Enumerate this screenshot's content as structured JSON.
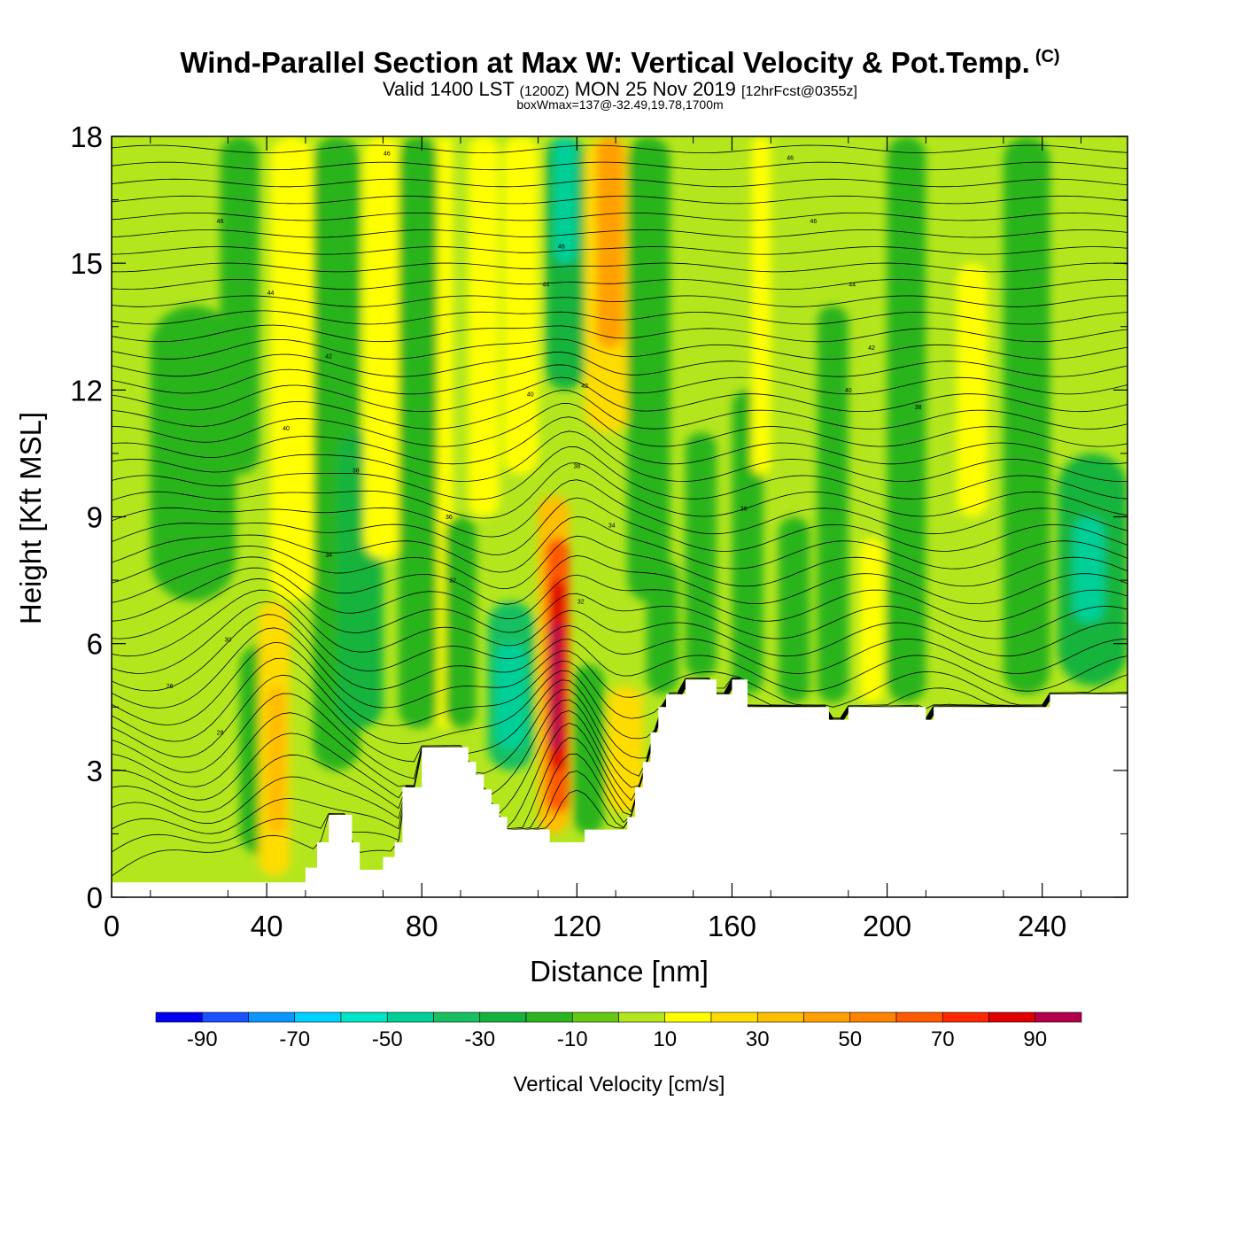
{
  "header": {
    "title": "Wind-Parallel Section at Max W: Vertical Velocity & Pot.Temp.",
    "copyright_mark": "(C)",
    "valid_prefix": "Valid 1400 LST",
    "valid_utc": "(1200Z)",
    "valid_date": "MON 25 Nov 2019",
    "forecast_info": "[12hrFcst@0355z]",
    "box_wmax": "boxWmax=137@-32.49,19.78,1700m"
  },
  "chart_data": {
    "type": "heatmap",
    "xlabel": "Distance [nm]",
    "ylabel": "Height [Kft MSL]",
    "xlim": [
      0,
      262
    ],
    "ylim": [
      0,
      18
    ],
    "x_ticks": [
      0,
      40,
      80,
      120,
      160,
      200,
      240
    ],
    "y_ticks": [
      0,
      3,
      6,
      9,
      12,
      15,
      18
    ],
    "colorbar": {
      "title": "Vertical Velocity [cm/s]",
      "boundaries": [
        -100,
        -90,
        -80,
        -70,
        -60,
        -50,
        -40,
        -30,
        -20,
        -10,
        0,
        10,
        20,
        30,
        40,
        50,
        60,
        70,
        80,
        90,
        100
      ],
      "colors": [
        "#0000f0",
        "#1a50ff",
        "#0a96ff",
        "#00d2ff",
        "#00e6c8",
        "#00d098",
        "#18c060",
        "#14b43c",
        "#2cb41e",
        "#64c814",
        "#b4e61e",
        "#ffff00",
        "#ffdc00",
        "#ffbe00",
        "#ffa000",
        "#ff8200",
        "#ff5a00",
        "#ff2800",
        "#e10000",
        "#b4004b"
      ],
      "labels": [
        "-90",
        "-70",
        "-50",
        "-30",
        "-10",
        "10",
        "30",
        "50",
        "70",
        "90"
      ]
    },
    "background_fill": "#b4e61e",
    "terrain": [
      [
        0,
        0.35
      ],
      [
        50,
        0.35
      ],
      [
        50,
        0.7
      ],
      [
        53,
        0.7
      ],
      [
        53,
        1.3
      ],
      [
        56,
        1.3
      ],
      [
        56,
        1.95
      ],
      [
        62,
        1.95
      ],
      [
        62,
        1.3
      ],
      [
        64,
        1.3
      ],
      [
        64,
        0.65
      ],
      [
        70,
        0.65
      ],
      [
        70,
        0.95
      ],
      [
        73,
        0.95
      ],
      [
        73,
        1.3
      ],
      [
        75,
        1.3
      ],
      [
        75,
        2.6
      ],
      [
        80,
        2.6
      ],
      [
        80,
        3.55
      ],
      [
        92,
        3.55
      ],
      [
        92,
        3.2
      ],
      [
        94,
        3.2
      ],
      [
        94,
        2.9
      ],
      [
        96,
        2.9
      ],
      [
        96,
        2.55
      ],
      [
        98,
        2.55
      ],
      [
        98,
        2.2
      ],
      [
        100,
        2.2
      ],
      [
        100,
        1.9
      ],
      [
        102,
        1.9
      ],
      [
        102,
        1.6
      ],
      [
        113,
        1.6
      ],
      [
        113,
        1.3
      ],
      [
        122,
        1.3
      ],
      [
        122,
        1.6
      ],
      [
        133,
        1.6
      ],
      [
        133,
        1.9
      ],
      [
        135,
        1.9
      ],
      [
        135,
        2.6
      ],
      [
        137,
        2.6
      ],
      [
        137,
        3.2
      ],
      [
        139,
        3.2
      ],
      [
        139,
        3.9
      ],
      [
        141,
        3.9
      ],
      [
        141,
        4.5
      ],
      [
        143,
        4.5
      ],
      [
        143,
        4.8
      ],
      [
        148,
        4.8
      ],
      [
        148,
        5.15
      ],
      [
        156,
        5.15
      ],
      [
        156,
        4.8
      ],
      [
        160,
        4.8
      ],
      [
        160,
        5.15
      ],
      [
        164,
        5.15
      ],
      [
        164,
        4.5
      ],
      [
        185,
        4.5
      ],
      [
        185,
        4.2
      ],
      [
        190,
        4.2
      ],
      [
        190,
        4.5
      ],
      [
        210,
        4.5
      ],
      [
        210,
        4.2
      ],
      [
        212,
        4.2
      ],
      [
        212,
        4.5
      ],
      [
        242,
        4.5
      ],
      [
        242,
        4.8
      ],
      [
        262,
        4.8
      ]
    ],
    "velocity_cells": [
      {
        "x": [
          10,
          32
        ],
        "y": [
          7,
          14
        ],
        "w": -15
      },
      {
        "x": [
          28,
          38
        ],
        "y": [
          10,
          18
        ],
        "w": -15
      },
      {
        "x": [
          33,
          45
        ],
        "y": [
          1,
          6
        ],
        "w": -20
      },
      {
        "x": [
          38,
          46
        ],
        "y": [
          0.5,
          7
        ],
        "w": 25
      },
      {
        "x": [
          40,
          45
        ],
        "y": [
          1.5,
          5
        ],
        "w": 35
      },
      {
        "x": [
          41,
          52
        ],
        "y": [
          7,
          18
        ],
        "w": 18
      },
      {
        "x": [
          52,
          64
        ],
        "y": [
          3,
          18
        ],
        "w": -15
      },
      {
        "x": [
          58,
          70
        ],
        "y": [
          4,
          11
        ],
        "w": -25
      },
      {
        "x": [
          65,
          75
        ],
        "y": [
          8,
          18
        ],
        "w": 12
      },
      {
        "x": [
          74,
          84
        ],
        "y": [
          4,
          18
        ],
        "w": -15
      },
      {
        "x": [
          84,
          88
        ],
        "y": [
          4,
          18
        ],
        "w": 12
      },
      {
        "x": [
          86,
          94
        ],
        "y": [
          4,
          9
        ],
        "w": -15
      },
      {
        "x": [
          92,
          100
        ],
        "y": [
          9,
          18
        ],
        "w": 15
      },
      {
        "x": [
          97,
          109
        ],
        "y": [
          3,
          7
        ],
        "w": -35
      },
      {
        "x": [
          99,
          107
        ],
        "y": [
          3.5,
          6
        ],
        "w": -45
      },
      {
        "x": [
          101,
          110
        ],
        "y": [
          10,
          18
        ],
        "w": 12
      },
      {
        "x": [
          110,
          118
        ],
        "y": [
          1.5,
          9.5
        ],
        "w": 30
      },
      {
        "x": [
          112,
          118
        ],
        "y": [
          2,
          8.5
        ],
        "w": 60
      },
      {
        "x": [
          113,
          117
        ],
        "y": [
          3,
          7.5
        ],
        "w": 80
      },
      {
        "x": [
          113,
          116
        ],
        "y": [
          3.5,
          6.5
        ],
        "w": 95
      },
      {
        "x": [
          112,
          122
        ],
        "y": [
          12,
          18
        ],
        "w": -30
      },
      {
        "x": [
          114,
          120
        ],
        "y": [
          15,
          18
        ],
        "w": -50
      },
      {
        "x": [
          119,
          127
        ],
        "y": [
          1.5,
          5.5
        ],
        "w": -20
      },
      {
        "x": [
          122,
          134
        ],
        "y": [
          11,
          18
        ],
        "w": 25
      },
      {
        "x": [
          125,
          132
        ],
        "y": [
          13,
          18
        ],
        "w": 40
      },
      {
        "x": [
          128,
          137
        ],
        "y": [
          2,
          5
        ],
        "w": 20
      },
      {
        "x": [
          133,
          144
        ],
        "y": [
          7,
          18
        ],
        "w": -15
      },
      {
        "x": [
          138,
          146
        ],
        "y": [
          4.8,
          8
        ],
        "w": -20
      },
      {
        "x": [
          148,
          156
        ],
        "y": [
          5.2,
          11
        ],
        "w": -15
      },
      {
        "x": [
          160,
          168
        ],
        "y": [
          4.8,
          12
        ],
        "w": -15
      },
      {
        "x": [
          165,
          170
        ],
        "y": [
          10,
          18
        ],
        "w": 15
      },
      {
        "x": [
          172,
          180
        ],
        "y": [
          4.6,
          9
        ],
        "w": -20
      },
      {
        "x": [
          182,
          190
        ],
        "y": [
          4.6,
          14
        ],
        "w": -15
      },
      {
        "x": [
          193,
          199
        ],
        "y": [
          4.6,
          8.5
        ],
        "w": 18
      },
      {
        "x": [
          200,
          210
        ],
        "y": [
          4.6,
          18
        ],
        "w": -15
      },
      {
        "x": [
          218,
          226
        ],
        "y": [
          9,
          15
        ],
        "w": 18
      },
      {
        "x": [
          230,
          242
        ],
        "y": [
          4.8,
          18
        ],
        "w": -15
      },
      {
        "x": [
          244,
          262
        ],
        "y": [
          5,
          10.5
        ],
        "w": -25
      },
      {
        "x": [
          248,
          256
        ],
        "y": [
          6.5,
          9
        ],
        "w": -45
      }
    ],
    "isentrope_labels": [
      {
        "x": 28,
        "y": 16,
        "text": "46"
      },
      {
        "x": 41,
        "y": 14.3,
        "text": "44"
      },
      {
        "x": 56,
        "y": 12.8,
        "text": "42"
      },
      {
        "x": 45,
        "y": 11.1,
        "text": "40"
      },
      {
        "x": 63,
        "y": 10.1,
        "text": "38"
      },
      {
        "x": 56,
        "y": 8.1,
        "text": "34"
      },
      {
        "x": 30,
        "y": 6.1,
        "text": "30"
      },
      {
        "x": 15,
        "y": 5.0,
        "text": "26"
      },
      {
        "x": 28,
        "y": 3.9,
        "text": "28"
      },
      {
        "x": 71,
        "y": 17.6,
        "text": "46"
      },
      {
        "x": 87,
        "y": 9.0,
        "text": "36"
      },
      {
        "x": 88,
        "y": 7.5,
        "text": "32"
      },
      {
        "x": 108,
        "y": 11.9,
        "text": "40"
      },
      {
        "x": 116,
        "y": 15.4,
        "text": "46"
      },
      {
        "x": 112,
        "y": 14.5,
        "text": "44"
      },
      {
        "x": 122,
        "y": 12.1,
        "text": "42"
      },
      {
        "x": 120,
        "y": 10.2,
        "text": "38"
      },
      {
        "x": 129,
        "y": 8.8,
        "text": "34"
      },
      {
        "x": 121,
        "y": 7.0,
        "text": "32"
      },
      {
        "x": 175,
        "y": 17.5,
        "text": "46"
      },
      {
        "x": 181,
        "y": 16,
        "text": "46"
      },
      {
        "x": 191,
        "y": 14.5,
        "text": "44"
      },
      {
        "x": 196,
        "y": 13.0,
        "text": "42"
      },
      {
        "x": 190,
        "y": 12.0,
        "text": "40"
      },
      {
        "x": 208,
        "y": 11.6,
        "text": "38"
      },
      {
        "x": 163,
        "y": 9.2,
        "text": "36"
      }
    ]
  }
}
